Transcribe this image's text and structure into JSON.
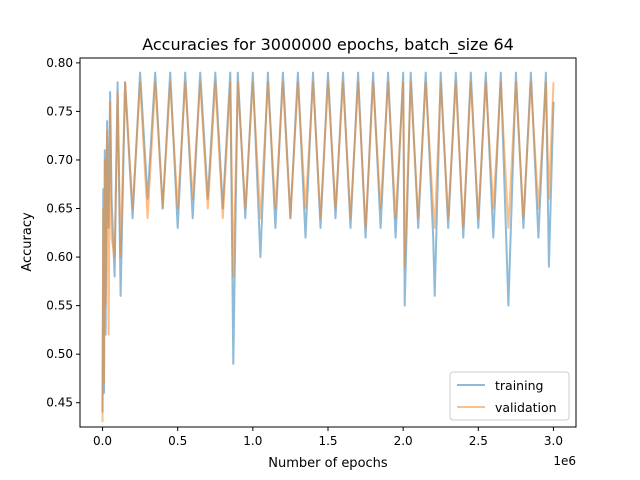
{
  "chart_data": {
    "type": "line",
    "title": "Accuracies for 3000000 epochs, batch_size 64",
    "xlabel": "Number of epochs",
    "ylabel": "Accuracy",
    "x_offset_label": "1e6",
    "xlim": [
      -0.15,
      3.15
    ],
    "ylim": [
      0.425,
      0.805
    ],
    "xticks": [
      0.0,
      0.5,
      1.0,
      1.5,
      2.0,
      2.5,
      3.0
    ],
    "xtick_labels": [
      "0.0",
      "0.5",
      "1.0",
      "1.5",
      "2.0",
      "2.5",
      "3.0"
    ],
    "yticks": [
      0.45,
      0.5,
      0.55,
      0.6,
      0.65,
      0.7,
      0.75,
      0.8
    ],
    "ytick_labels": [
      "0.45",
      "0.50",
      "0.55",
      "0.60",
      "0.65",
      "0.70",
      "0.75",
      "0.80"
    ],
    "grid": false,
    "legend_position": "lower-right",
    "x_unit_multiplier": 1000000,
    "series": [
      {
        "name": "training",
        "color": "#1f77b4",
        "opacity": 0.5,
        "x": [
          0.0,
          0.005,
          0.01,
          0.015,
          0.02,
          0.03,
          0.04,
          0.05,
          0.06,
          0.08,
          0.1,
          0.12,
          0.15,
          0.2,
          0.25,
          0.3,
          0.35,
          0.4,
          0.45,
          0.5,
          0.55,
          0.6,
          0.65,
          0.7,
          0.75,
          0.8,
          0.85,
          0.87,
          0.9,
          0.95,
          1.0,
          1.05,
          1.1,
          1.15,
          1.2,
          1.25,
          1.3,
          1.35,
          1.4,
          1.45,
          1.5,
          1.55,
          1.6,
          1.65,
          1.7,
          1.75,
          1.8,
          1.85,
          1.9,
          1.95,
          2.0,
          2.01,
          2.05,
          2.1,
          2.15,
          2.2,
          2.21,
          2.25,
          2.3,
          2.35,
          2.4,
          2.45,
          2.5,
          2.55,
          2.6,
          2.65,
          2.7,
          2.75,
          2.8,
          2.85,
          2.9,
          2.95,
          2.97,
          3.0
        ],
        "y": [
          0.44,
          0.67,
          0.46,
          0.71,
          0.52,
          0.74,
          0.63,
          0.77,
          0.66,
          0.58,
          0.78,
          0.56,
          0.78,
          0.64,
          0.79,
          0.66,
          0.79,
          0.65,
          0.79,
          0.63,
          0.79,
          0.64,
          0.79,
          0.66,
          0.79,
          0.65,
          0.79,
          0.49,
          0.79,
          0.64,
          0.79,
          0.6,
          0.79,
          0.63,
          0.79,
          0.64,
          0.79,
          0.62,
          0.79,
          0.63,
          0.79,
          0.64,
          0.79,
          0.63,
          0.79,
          0.62,
          0.79,
          0.63,
          0.79,
          0.62,
          0.79,
          0.55,
          0.79,
          0.63,
          0.79,
          0.62,
          0.56,
          0.79,
          0.63,
          0.79,
          0.62,
          0.79,
          0.63,
          0.79,
          0.62,
          0.79,
          0.55,
          0.79,
          0.63,
          0.79,
          0.62,
          0.79,
          0.59,
          0.76
        ]
      },
      {
        "name": "validation",
        "color": "#ff7f0e",
        "opacity": 0.5,
        "x": [
          0.0,
          0.005,
          0.01,
          0.015,
          0.02,
          0.03,
          0.04,
          0.05,
          0.06,
          0.08,
          0.1,
          0.12,
          0.15,
          0.2,
          0.25,
          0.3,
          0.35,
          0.4,
          0.45,
          0.5,
          0.55,
          0.6,
          0.65,
          0.7,
          0.75,
          0.8,
          0.85,
          0.87,
          0.9,
          0.95,
          1.0,
          1.05,
          1.1,
          1.15,
          1.2,
          1.25,
          1.3,
          1.35,
          1.4,
          1.45,
          1.5,
          1.55,
          1.6,
          1.65,
          1.7,
          1.75,
          1.8,
          1.85,
          1.9,
          1.95,
          2.0,
          2.01,
          2.05,
          2.1,
          2.15,
          2.2,
          2.21,
          2.25,
          2.3,
          2.35,
          2.4,
          2.45,
          2.5,
          2.55,
          2.6,
          2.65,
          2.7,
          2.75,
          2.8,
          2.85,
          2.9,
          2.95,
          2.97,
          3.0
        ],
        "y": [
          0.43,
          0.65,
          0.47,
          0.7,
          0.55,
          0.73,
          0.52,
          0.76,
          0.62,
          0.6,
          0.77,
          0.6,
          0.78,
          0.65,
          0.78,
          0.64,
          0.78,
          0.65,
          0.78,
          0.65,
          0.78,
          0.66,
          0.78,
          0.65,
          0.78,
          0.64,
          0.78,
          0.58,
          0.78,
          0.65,
          0.78,
          0.64,
          0.78,
          0.65,
          0.78,
          0.64,
          0.78,
          0.65,
          0.78,
          0.64,
          0.78,
          0.65,
          0.78,
          0.64,
          0.78,
          0.63,
          0.78,
          0.65,
          0.78,
          0.64,
          0.78,
          0.59,
          0.78,
          0.64,
          0.78,
          0.65,
          0.63,
          0.78,
          0.64,
          0.78,
          0.63,
          0.78,
          0.64,
          0.78,
          0.65,
          0.78,
          0.63,
          0.78,
          0.64,
          0.78,
          0.65,
          0.78,
          0.66,
          0.78
        ]
      }
    ]
  }
}
